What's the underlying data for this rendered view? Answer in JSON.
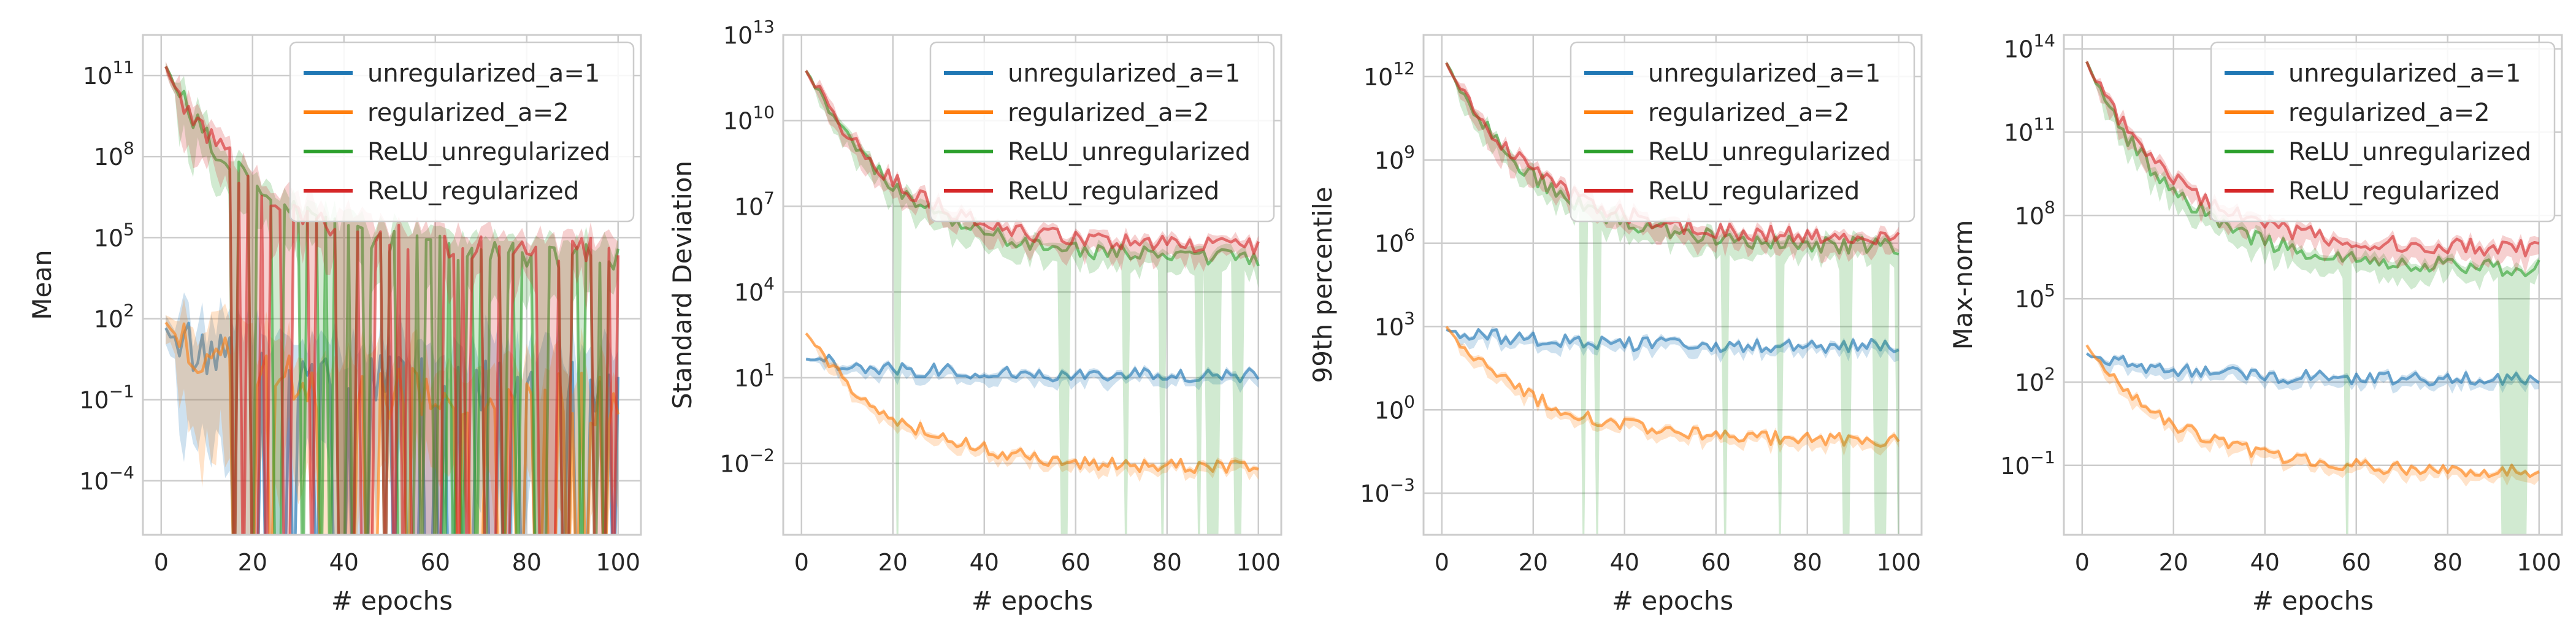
{
  "colors": {
    "unregularized_a=1": "#1f77b4",
    "regularized_a=2": "#ff7f0e",
    "ReLU_unregularized": "#2ca02c",
    "ReLU_regularized": "#d62728",
    "grid": "#cccccc",
    "frame": "#cccccc"
  },
  "chart_data": [
    {
      "type": "line",
      "title": "",
      "xlabel": "# epochs",
      "ylabel": "Mean",
      "yscale": "log",
      "xlim": [
        -4,
        105
      ],
      "ylim_log10": [
        -6,
        12.5
      ],
      "x_ticks": [
        0,
        20,
        40,
        60,
        80,
        100
      ],
      "y_ticks_exp": [
        -4,
        -1,
        2,
        5,
        8,
        11
      ],
      "grid": true,
      "legend_position": "upper right",
      "series": [
        {
          "name": "unregularized_a=1",
          "start_log10": 1.6,
          "end_log10": -0.5,
          "noise": 1.0,
          "band": 5.0,
          "dropouts": true,
          "color_key": "unregularized_a=1"
        },
        {
          "name": "regularized_a=2",
          "start_log10": 1.8,
          "end_log10": -1.0,
          "noise": 1.0,
          "band": 5.0,
          "dropouts": true,
          "color_key": "regularized_a=2"
        },
        {
          "name": "ReLU_unregularized",
          "start_log10": 11.3,
          "end_log10": 4.3,
          "noise": 0.5,
          "band": 2.0,
          "dropouts": true,
          "color_key": "ReLU_unregularized"
        },
        {
          "name": "ReLU_regularized",
          "start_log10": 11.3,
          "end_log10": 4.5,
          "noise": 0.5,
          "band": 2.0,
          "dropouts": true,
          "color_key": "ReLU_regularized"
        }
      ]
    },
    {
      "type": "line",
      "title": "",
      "xlabel": "# epochs",
      "ylabel": "Standard Deviation",
      "yscale": "log",
      "xlim": [
        -4,
        105
      ],
      "ylim_log10": [
        -4.5,
        13
      ],
      "x_ticks": [
        0,
        20,
        40,
        60,
        80,
        100
      ],
      "y_ticks_exp": [
        -2,
        1,
        4,
        7,
        10,
        13
      ],
      "grid": true,
      "legend_position": "upper right",
      "series": [
        {
          "name": "unregularized_a=1",
          "start_log10": 1.7,
          "end_log10": 1.1,
          "noise": 0.25,
          "band": 0.4,
          "dropouts": false,
          "color_key": "unregularized_a=1"
        },
        {
          "name": "regularized_a=2",
          "start_log10": 2.6,
          "end_log10": -2.15,
          "noise": 0.25,
          "band": 0.4,
          "dropouts": false,
          "color_key": "regularized_a=2"
        },
        {
          "name": "ReLU_unregularized",
          "start_log10": 11.8,
          "end_log10": 5.2,
          "noise": 0.3,
          "band": 0.8,
          "dropouts": true,
          "color_key": "ReLU_unregularized"
        },
        {
          "name": "ReLU_regularized",
          "start_log10": 11.8,
          "end_log10": 5.6,
          "noise": 0.3,
          "band": 0.8,
          "dropouts": false,
          "color_key": "ReLU_regularized"
        }
      ]
    },
    {
      "type": "line",
      "title": "",
      "xlabel": "# epochs",
      "ylabel": "99th percentile",
      "yscale": "log",
      "xlim": [
        -4,
        105
      ],
      "ylim_log10": [
        -4.5,
        13.5
      ],
      "x_ticks": [
        0,
        20,
        40,
        60,
        80,
        100
      ],
      "y_ticks_exp": [
        -3,
        0,
        3,
        6,
        9,
        12
      ],
      "grid": true,
      "legend_position": "upper right",
      "series": [
        {
          "name": "unregularized_a=1",
          "start_log10": 2.9,
          "end_log10": 2.3,
          "noise": 0.25,
          "band": 0.4,
          "dropouts": false,
          "color_key": "unregularized_a=1"
        },
        {
          "name": "regularized_a=2",
          "start_log10": 3.0,
          "end_log10": -1.1,
          "noise": 0.25,
          "band": 0.4,
          "dropouts": false,
          "color_key": "regularized_a=2"
        },
        {
          "name": "ReLU_unregularized",
          "start_log10": 12.5,
          "end_log10": 5.9,
          "noise": 0.3,
          "band": 0.8,
          "dropouts": true,
          "color_key": "ReLU_unregularized"
        },
        {
          "name": "ReLU_regularized",
          "start_log10": 12.5,
          "end_log10": 6.2,
          "noise": 0.3,
          "band": 0.8,
          "dropouts": false,
          "color_key": "ReLU_regularized"
        }
      ]
    },
    {
      "type": "line",
      "title": "",
      "xlabel": "# epochs",
      "ylabel": "Max-norm",
      "yscale": "log",
      "xlim": [
        -4,
        105
      ],
      "ylim_log10": [
        -3.5,
        14.5
      ],
      "x_ticks": [
        0,
        20,
        40,
        60,
        80,
        100
      ],
      "y_ticks_exp": [
        -1,
        2,
        5,
        8,
        11,
        14
      ],
      "grid": true,
      "legend_position": "upper right",
      "series": [
        {
          "name": "unregularized_a=1",
          "start_log10": 3.0,
          "end_log10": 2.1,
          "noise": 0.25,
          "band": 0.4,
          "dropouts": false,
          "color_key": "unregularized_a=1"
        },
        {
          "name": "regularized_a=2",
          "start_log10": 3.3,
          "end_log10": -1.2,
          "noise": 0.25,
          "band": 0.4,
          "dropouts": false,
          "color_key": "regularized_a=2"
        },
        {
          "name": "ReLU_unregularized",
          "start_log10": 13.5,
          "end_log10": 6.1,
          "noise": 0.3,
          "band": 0.8,
          "dropouts": true,
          "color_key": "ReLU_unregularized"
        },
        {
          "name": "ReLU_regularized",
          "start_log10": 13.5,
          "end_log10": 6.8,
          "noise": 0.3,
          "band": 0.8,
          "dropouts": false,
          "color_key": "ReLU_regularized"
        }
      ]
    }
  ]
}
